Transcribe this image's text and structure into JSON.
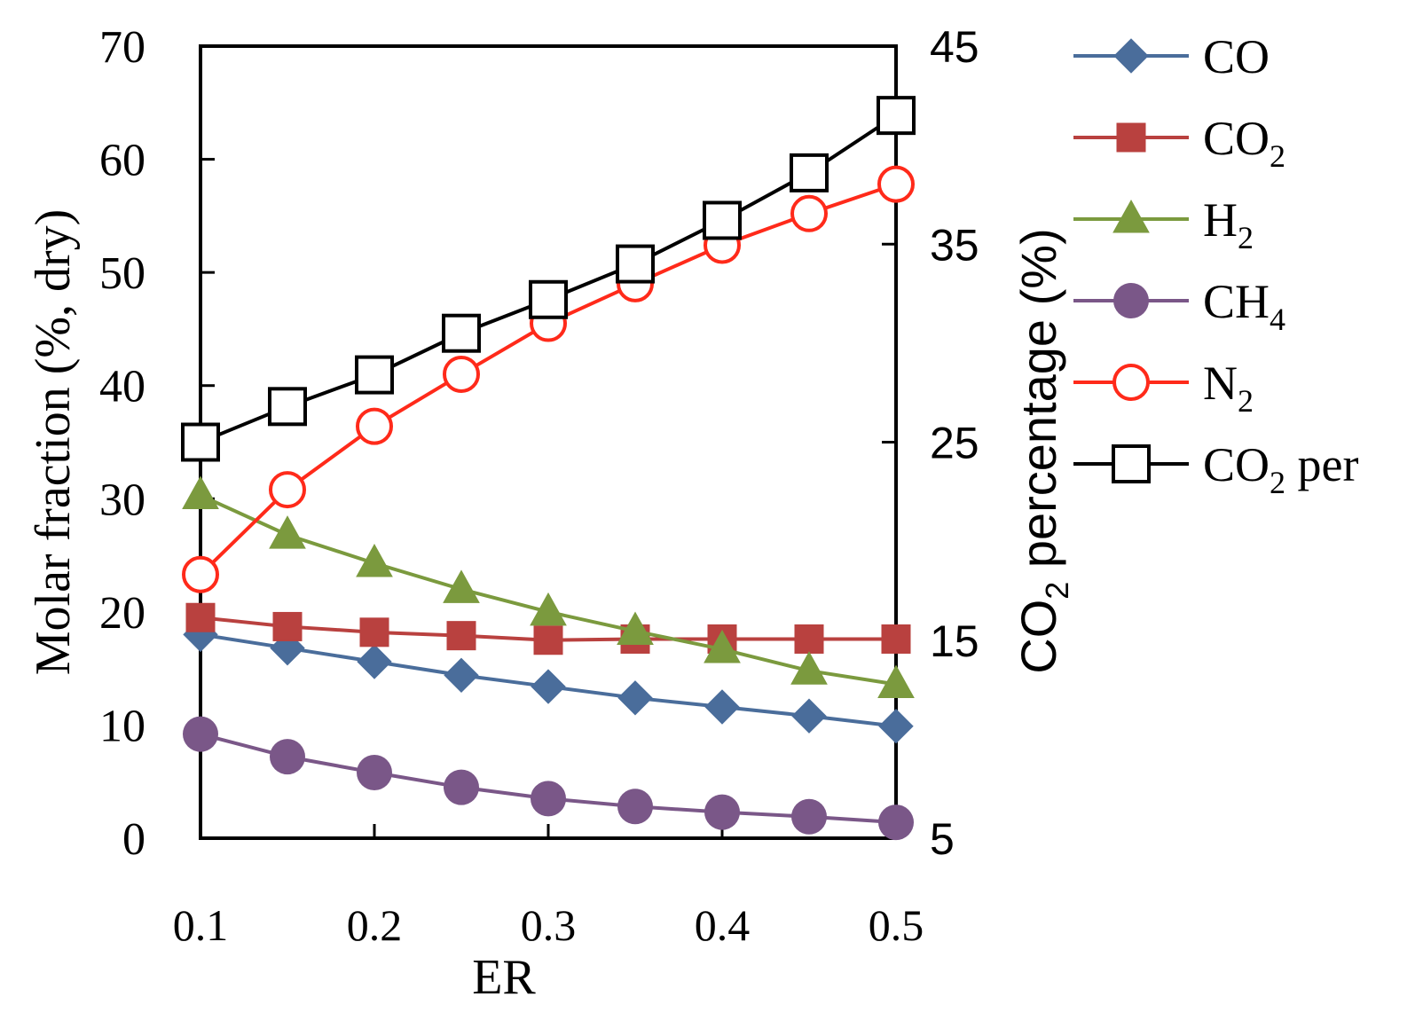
{
  "chart_data": {
    "type": "line",
    "x": [
      0.1,
      0.15,
      0.2,
      0.25,
      0.3,
      0.35,
      0.4,
      0.45,
      0.5
    ],
    "xlabel": "ER",
    "x_ticks": [
      "0.1",
      "0.2",
      "0.3",
      "0.4",
      "0.5"
    ],
    "x_tick_values": [
      0.1,
      0.2,
      0.3,
      0.4,
      0.5
    ],
    "xlim": [
      0.1,
      0.5
    ],
    "ylabel_left": "Molar fraction  (%, dry)",
    "ylim_left": [
      0,
      70
    ],
    "y_ticks_left": [
      "0",
      "10",
      "20",
      "30",
      "40",
      "50",
      "60",
      "70"
    ],
    "ylabel_right_main": "CO",
    "ylabel_right_sub": "2",
    "ylabel_right_rest": " percentage  (%)",
    "ylim_right": [
      5,
      45
    ],
    "y_ticks_right": [
      "5",
      "15",
      "25",
      "35",
      "45"
    ],
    "series": [
      {
        "name": "CO",
        "sub": "",
        "axis": "left",
        "color": "#4a6d9b",
        "marker": "diamond",
        "values": [
          18.0,
          16.8,
          15.6,
          14.4,
          13.4,
          12.4,
          11.6,
          10.8,
          9.9
        ]
      },
      {
        "name": "CO",
        "sub": "2",
        "axis": "left",
        "color": "#b9413f",
        "marker": "square-filled",
        "values": [
          19.5,
          18.7,
          18.2,
          17.9,
          17.5,
          17.6,
          17.6,
          17.6,
          17.6
        ]
      },
      {
        "name": "H",
        "sub": "2",
        "axis": "left",
        "color": "#7b9a3e",
        "marker": "triangle",
        "values": [
          30.3,
          26.8,
          24.3,
          22.0,
          20.0,
          18.3,
          16.7,
          14.8,
          13.6
        ]
      },
      {
        "name": "CH",
        "sub": "4",
        "axis": "left",
        "color": "#7a5788",
        "marker": "circle-filled",
        "values": [
          9.2,
          7.2,
          5.8,
          4.5,
          3.5,
          2.8,
          2.3,
          1.9,
          1.4
        ]
      },
      {
        "name": " N",
        "sub": "2",
        "axis": "left",
        "color": "#ff2a1a",
        "marker": "circle-open",
        "values": [
          23.3,
          30.8,
          36.4,
          41.0,
          45.5,
          49.0,
          52.4,
          55.2,
          57.8
        ]
      },
      {
        "name": "CO",
        "sub": "2",
        "suffix": " per",
        "axis": "right",
        "color": "#000000",
        "marker": "square-open",
        "values": [
          25.0,
          26.8,
          28.4,
          30.5,
          32.2,
          34.0,
          36.2,
          38.6,
          41.5
        ]
      }
    ]
  }
}
